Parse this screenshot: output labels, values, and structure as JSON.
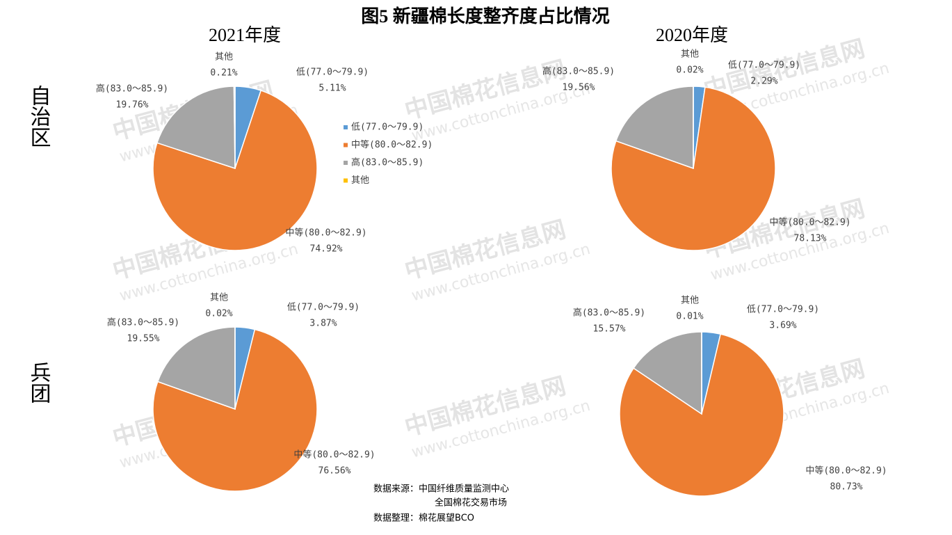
{
  "page": {
    "title": "图5  新疆棉长度整齐度占比情况",
    "column_titles": [
      "2021年度",
      "2020年度"
    ],
    "row_labels": [
      "自治区",
      "兵团"
    ],
    "source": [
      "数据来源：中国纤维质量监测中心",
      "全国棉花交易市场",
      "数据整理：棉花展望BCO"
    ],
    "watermark": [
      "中国棉花信息网",
      "www.cottonchina.org.cn"
    ]
  },
  "chart_data": [
    {
      "type": "pie",
      "categories": [
        "低(77.0～79.9)",
        "中等(80.0～82.9)",
        "高(83.0～85.9)",
        "其他"
      ],
      "values": [
        5.11,
        74.92,
        19.76,
        0.21
      ],
      "value_labels": [
        "5.11%",
        "74.92%",
        "19.76%",
        "0.21%"
      ],
      "colors": [
        "#5b9bd5",
        "#ed7d31",
        "#a5a5a5",
        "#ffc000"
      ],
      "legend": true
    },
    {
      "type": "pie",
      "categories": [
        "低(77.0～79.9)",
        "中等(80.0～82.9)",
        "高(83.0～85.9)",
        "其他"
      ],
      "values": [
        2.29,
        78.13,
        19.56,
        0.02
      ],
      "value_labels": [
        "2.29%",
        "78.13%",
        "19.56%",
        "0.02%"
      ],
      "colors": [
        "#5b9bd5",
        "#ed7d31",
        "#a5a5a5",
        "#ffc000"
      ],
      "legend": false
    },
    {
      "type": "pie",
      "categories": [
        "低(77.0～79.9)",
        "中等(80.0～82.9)",
        "高(83.0～85.9)",
        "其他"
      ],
      "values": [
        3.87,
        76.56,
        19.55,
        0.02
      ],
      "value_labels": [
        "3.87%",
        "76.56%",
        "19.55%",
        "0.02%"
      ],
      "colors": [
        "#5b9bd5",
        "#ed7d31",
        "#a5a5a5",
        "#ffc000"
      ],
      "legend": false
    },
    {
      "type": "pie",
      "categories": [
        "低(77.0～79.9)",
        "中等(80.0～82.9)",
        "高(83.0～85.9)",
        "其他"
      ],
      "values": [
        3.69,
        80.73,
        15.57,
        0.01
      ],
      "value_labels": [
        "3.69%",
        "80.73%",
        "15.57%",
        "0.01%"
      ],
      "colors": [
        "#5b9bd5",
        "#ed7d31",
        "#a5a5a5",
        "#ffc000"
      ],
      "legend": false
    }
  ]
}
